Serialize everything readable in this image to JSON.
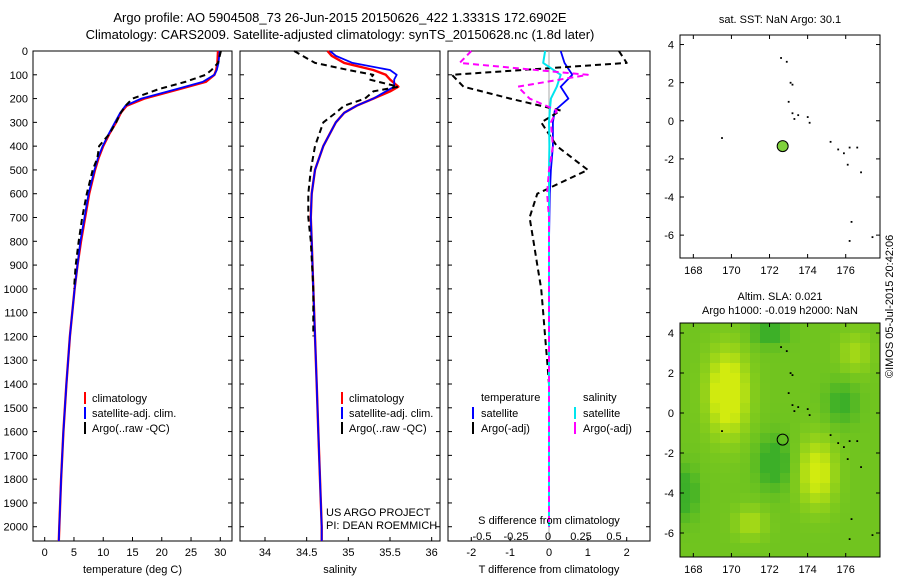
{
  "header": {
    "line1": "Argo profile: AO 5904508_73 26-Jun-2015 20150626_422 1.3331S 172.6902E",
    "line2": "Climatology: CARS2009. Satellite-adjusted climatology: synTS_20150628.nc (1.8d later)"
  },
  "stamp": "©IMOS 05-Jul-2015 20:42:06",
  "credits": {
    "project": "US ARGO PROJECT",
    "pi": "PI: DEAN ROEMMICH"
  },
  "colors": {
    "climatology": "#ff0000",
    "satellite": "#0000ff",
    "argo": "#000000",
    "sat_salinity": "#00e5ee",
    "argo_salinity": "#ff00ff",
    "float_marker": "#7fd13b"
  },
  "depth_axis": {
    "ticks": [
      "0",
      "100",
      "200",
      "300",
      "400",
      "500",
      "600",
      "700",
      "800",
      "900",
      "1000",
      "1100",
      "1200",
      "1300",
      "1400",
      "1500",
      "1600",
      "1700",
      "1800",
      "1900",
      "2000"
    ]
  },
  "chart_data": [
    {
      "type": "line",
      "name": "temperature",
      "xlabel": "temperature (deg C)",
      "xlim": [
        -2,
        32
      ],
      "ylim": [
        2060,
        0
      ],
      "xticks": [
        "0",
        "5",
        "10",
        "15",
        "20",
        "25",
        "30"
      ],
      "legend": [
        "climatology",
        "satellite-adj. clim.",
        "Argo(..raw -QC)"
      ],
      "legend_position": "bottom",
      "depth": [
        0,
        50,
        80,
        100,
        130,
        160,
        200,
        230,
        260,
        300,
        350,
        400,
        450,
        500,
        600,
        700,
        800,
        900,
        1000,
        1200,
        1400,
        1600,
        1800,
        2000,
        2060
      ],
      "series": [
        {
          "name": "climatology",
          "values": [
            29.6,
            29.5,
            29.3,
            29.0,
            27.5,
            23.0,
            17.0,
            14.0,
            13.0,
            12.2,
            11.0,
            10.0,
            9.2,
            8.6,
            7.6,
            6.9,
            6.2,
            5.6,
            5.1,
            4.3,
            3.7,
            3.2,
            2.8,
            2.5,
            2.4
          ]
        },
        {
          "name": "satellite-adj. clim.",
          "values": [
            29.9,
            29.7,
            29.4,
            29.0,
            27.0,
            22.5,
            16.5,
            13.8,
            12.9,
            12.0,
            10.9,
            9.9,
            9.1,
            8.5,
            7.5,
            6.8,
            6.1,
            5.6,
            5.1,
            4.3,
            3.7,
            3.2,
            2.8,
            2.5,
            2.4
          ]
        },
        {
          "name": "Argo(..raw -QC)",
          "values": [
            30.1,
            29.6,
            28.5,
            27.5,
            24.0,
            19.5,
            15.0,
            13.8,
            13.0,
            12.2,
            11.0,
            9.3,
            9.0,
            8.2,
            7.2,
            6.4,
            5.8,
            5.3,
            5.0
          ]
        }
      ]
    },
    {
      "type": "line",
      "name": "salinity",
      "xlabel": "salinity",
      "xlim": [
        33.7,
        36.1
      ],
      "ylim": [
        2060,
        0
      ],
      "xticks": [
        "34",
        "34.5",
        "35",
        "35.5",
        "36"
      ],
      "legend": [
        "climatology",
        "satellite-adj. clim.",
        "Argo(..raw -QC)"
      ],
      "legend_position": "bottom",
      "depth": [
        0,
        20,
        50,
        80,
        100,
        120,
        150,
        170,
        200,
        230,
        260,
        300,
        400,
        500,
        600,
        700,
        800,
        1000,
        1200,
        1400,
        1600,
        1800,
        2000,
        2060
      ],
      "series": [
        {
          "name": "climatology",
          "values": [
            34.75,
            34.8,
            34.95,
            35.3,
            35.45,
            35.5,
            35.6,
            35.5,
            35.3,
            35.1,
            34.95,
            34.85,
            34.7,
            34.6,
            34.56,
            34.55,
            34.56,
            34.58,
            34.6,
            34.62,
            34.64,
            34.66,
            34.68,
            34.68
          ]
        },
        {
          "name": "satellite-adj. clim.",
          "values": [
            34.78,
            34.85,
            35.05,
            35.5,
            35.58,
            35.55,
            35.55,
            35.45,
            35.3,
            35.1,
            34.95,
            34.85,
            34.7,
            34.6,
            34.56,
            34.55,
            34.56,
            34.58,
            34.6,
            34.62,
            34.64,
            34.66,
            34.68,
            34.68
          ]
        },
        {
          "name": "Argo(..raw -QC)",
          "values": [
            34.35,
            34.45,
            34.6,
            35.0,
            35.3,
            35.25,
            35.6,
            35.3,
            35.2,
            34.95,
            34.85,
            34.7,
            34.6,
            34.55,
            34.52,
            34.52,
            34.55,
            34.58,
            34.58
          ]
        }
      ]
    },
    {
      "type": "line",
      "name": "difference",
      "xlabel": "T difference from climatology",
      "top_axis_label": "S difference from climatology",
      "xlim": [
        -2.6,
        2.6
      ],
      "ylim": [
        2060,
        0
      ],
      "xticks": [
        "-2",
        "-1",
        "0",
        "1",
        "2"
      ],
      "top_ticks": [
        "-0.5",
        "-0.25",
        "0",
        "0.25",
        "0.5"
      ],
      "legend_headers": [
        "temperature",
        "salinity"
      ],
      "legend": [
        "satellite",
        "Argo(-adj)",
        "satellite",
        "Argo(-adj)"
      ],
      "legend_position": "bottom",
      "depth": [
        0,
        50,
        100,
        150,
        200,
        250,
        300,
        400,
        500,
        600,
        700,
        800,
        900,
        1000,
        1100,
        1200,
        1300,
        1400,
        1500,
        1600,
        1700,
        1800,
        1900,
        2000
      ],
      "series": [
        {
          "name": "temperature satellite",
          "values": [
            0.3,
            0.4,
            0.6,
            0.3,
            0.5,
            0.15,
            0.1,
            0.1,
            0.05,
            0.02,
            0.01,
            0,
            0,
            0,
            0,
            0,
            0,
            0,
            0,
            0,
            0,
            0,
            0,
            0
          ]
        },
        {
          "name": "temperature Argo(-adj)",
          "values": [
            1.8,
            2.0,
            -2.5,
            -2.2,
            -1.0,
            0.3,
            -0.2,
            0.2,
            1.0,
            -0.3,
            -0.5,
            -0.4,
            -0.3,
            -0.2,
            -0.15,
            -0.1,
            -0.05,
            0,
            0,
            0,
            0,
            0,
            0,
            0
          ]
        },
        {
          "name": "salinity satellite",
          "values": [
            -0.1,
            -0.15,
            0.3,
            0.2,
            0.05,
            0.02,
            0.0,
            0.01,
            0,
            0,
            0,
            0,
            0,
            0,
            0,
            0,
            0,
            0,
            0,
            0,
            0,
            0,
            0,
            0
          ]
        },
        {
          "name": "salinity Argo(-adj)",
          "values": [
            -2.0,
            -2.3,
            1.0,
            -0.8,
            -0.5,
            0.2,
            0.05,
            0.1,
            0.0,
            -0.05,
            0,
            0,
            0,
            0,
            0,
            0,
            0,
            0,
            0,
            0,
            0,
            0,
            0,
            0
          ]
        }
      ]
    },
    {
      "type": "scatter",
      "name": "sst-map",
      "title": "sat. SST: NaN  Argo: 30.1",
      "xlim": [
        167.3,
        177.8
      ],
      "ylim": [
        -7.2,
        4.5
      ],
      "xticks": [
        "168",
        "170",
        "172",
        "174",
        "176"
      ],
      "yticks": [
        "4",
        "2",
        "0",
        "-2",
        "-4",
        "-6"
      ],
      "float_position": {
        "lon": 172.69,
        "lat": -1.33
      },
      "islands": [
        [
          172.6,
          3.3
        ],
        [
          172.9,
          3.1
        ],
        [
          173.1,
          2.0
        ],
        [
          173.2,
          1.9
        ],
        [
          173.0,
          1.0
        ],
        [
          173.2,
          0.4
        ],
        [
          173.5,
          0.3
        ],
        [
          173.3,
          0.1
        ],
        [
          174.0,
          0.2
        ],
        [
          174.1,
          -0.1
        ],
        [
          175.2,
          -1.1
        ],
        [
          175.6,
          -1.5
        ],
        [
          175.9,
          -1.7
        ],
        [
          176.2,
          -1.4
        ],
        [
          176.6,
          -1.4
        ],
        [
          176.1,
          -2.3
        ],
        [
          176.8,
          -2.7
        ],
        [
          169.5,
          -0.9
        ],
        [
          176.3,
          -5.3
        ],
        [
          176.2,
          -6.3
        ],
        [
          177.4,
          -6.1
        ]
      ]
    },
    {
      "type": "heatmap",
      "name": "sla-map",
      "title_line1": "Altim. SLA: 0.021",
      "title_line2": "Argo h1000: -0.019 h2000: NaN",
      "xlim": [
        167.3,
        177.8
      ],
      "ylim": [
        -7.2,
        4.5
      ],
      "xticks": [
        "168",
        "170",
        "172",
        "174",
        "176"
      ],
      "yticks": [
        "4",
        "2",
        "0",
        "-2",
        "-4",
        "-6"
      ],
      "float_position": {
        "lon": 172.69,
        "lat": -1.33
      },
      "hotspots": [
        {
          "lon": 169.8,
          "lat": 1.0,
          "sx": 1.0,
          "sy": 2.0,
          "amp": 1.0
        },
        {
          "lon": 174.5,
          "lat": -3.0,
          "sx": 0.9,
          "sy": 1.6,
          "amp": 0.75
        },
        {
          "lon": 171.0,
          "lat": -5.5,
          "sx": 0.8,
          "sy": 0.8,
          "amp": 0.4
        },
        {
          "lon": 176.5,
          "lat": 3.0,
          "sx": 0.8,
          "sy": 1.0,
          "amp": 0.35
        }
      ],
      "lowspots": [
        {
          "lon": 172.2,
          "lat": -2.5,
          "sx": 0.8,
          "sy": 1.2,
          "amp": 0.55
        },
        {
          "lon": 175.8,
          "lat": 0.5,
          "sx": 0.8,
          "sy": 1.0,
          "amp": 0.4
        },
        {
          "lon": 167.6,
          "lat": -4.0,
          "sx": 0.6,
          "sy": 1.2,
          "amp": 0.5
        },
        {
          "lon": 172.0,
          "lat": 4.0,
          "sx": 0.9,
          "sy": 0.6,
          "amp": 0.45
        }
      ]
    }
  ]
}
